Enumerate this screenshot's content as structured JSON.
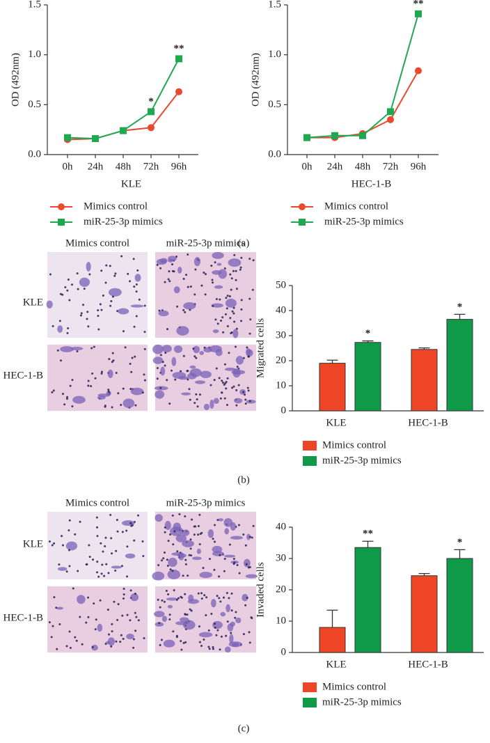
{
  "chart_data": [
    {
      "type": "line",
      "x_label": "KLE",
      "y_label": "OD (492nm)",
      "categories": [
        "0h",
        "24h",
        "48h",
        "72h",
        "96h"
      ],
      "ylim": [
        0,
        1.5
      ],
      "yticks": [
        {
          "value": 0,
          "label": "0.0"
        },
        0.5,
        {
          "value": 1,
          "label": "1.0"
        },
        1.5
      ],
      "series": [
        {
          "name": "Mimics control",
          "color": "#e8492f",
          "marker": "circle",
          "values": [
            0.15,
            0.16,
            0.24,
            0.27,
            0.63
          ]
        },
        {
          "name": "miR-25-3p mimics",
          "color": "#1fa850",
          "marker": "square",
          "values": [
            0.17,
            0.16,
            0.24,
            0.43,
            0.96
          ],
          "significance": [
            null,
            null,
            null,
            "*",
            "**"
          ]
        }
      ]
    },
    {
      "type": "line",
      "x_label": "HEC-1-B",
      "y_label": "OD (492nm)",
      "categories": [
        "0h",
        "24h",
        "48h",
        "72h",
        "96h"
      ],
      "ylim": [
        0,
        1.5
      ],
      "yticks": [
        {
          "value": 0,
          "label": "0.0"
        },
        0.5,
        {
          "value": 1,
          "label": "1.0"
        },
        1.5
      ],
      "series": [
        {
          "name": "Mimics control",
          "color": "#e8492f",
          "marker": "circle",
          "values": [
            0.17,
            0.17,
            0.21,
            0.35,
            0.84
          ]
        },
        {
          "name": "miR-25-3p mimics",
          "color": "#1fa850",
          "marker": "square",
          "values": [
            0.17,
            0.19,
            0.19,
            0.43,
            1.41
          ],
          "significance": [
            null,
            null,
            null,
            null,
            "**"
          ]
        }
      ]
    },
    {
      "type": "bar",
      "y_label": "Migrated cells",
      "categories": [
        "KLE",
        "HEC-1-B"
      ],
      "ylim": [
        0,
        50
      ],
      "yticks": [
        0,
        10,
        20,
        30,
        40,
        50
      ],
      "series": [
        {
          "name": "Mimics control",
          "color": "#ee4527",
          "values": [
            19,
            24.5
          ],
          "errors": [
            1.2,
            0.6
          ]
        },
        {
          "name": "miR-25-3p mimics",
          "color": "#0f9a48",
          "values": [
            27.3,
            36.5
          ],
          "errors": [
            0.6,
            2
          ],
          "significance": [
            "*",
            "*"
          ]
        }
      ]
    },
    {
      "type": "bar",
      "y_label": "Invaded cells",
      "categories": [
        "KLE",
        "HEC-1-B"
      ],
      "ylim": [
        0,
        40
      ],
      "yticks": [
        0,
        10,
        20,
        30,
        40
      ],
      "series": [
        {
          "name": "Mimics control",
          "color": "#ee4527",
          "values": [
            8,
            24.5
          ],
          "errors": [
            5.5,
            0.7
          ]
        },
        {
          "name": "miR-25-3p mimics",
          "color": "#0f9a48",
          "values": [
            33.5,
            30
          ],
          "errors": [
            2,
            2.8
          ],
          "significance": [
            "**",
            "*"
          ]
        }
      ]
    }
  ],
  "micrographs": [
    {
      "columns": [
        "Mimics control",
        "miR-25-3p mimics"
      ],
      "rows": [
        "KLE",
        "HEC-1-B"
      ]
    },
    {
      "columns": [
        "Mimics control",
        "miR-25-3p mimics"
      ],
      "rows": [
        "KLE",
        "HEC-1-B"
      ]
    }
  ],
  "panel_labels": [
    "(a)",
    "(b)",
    "(c)"
  ]
}
